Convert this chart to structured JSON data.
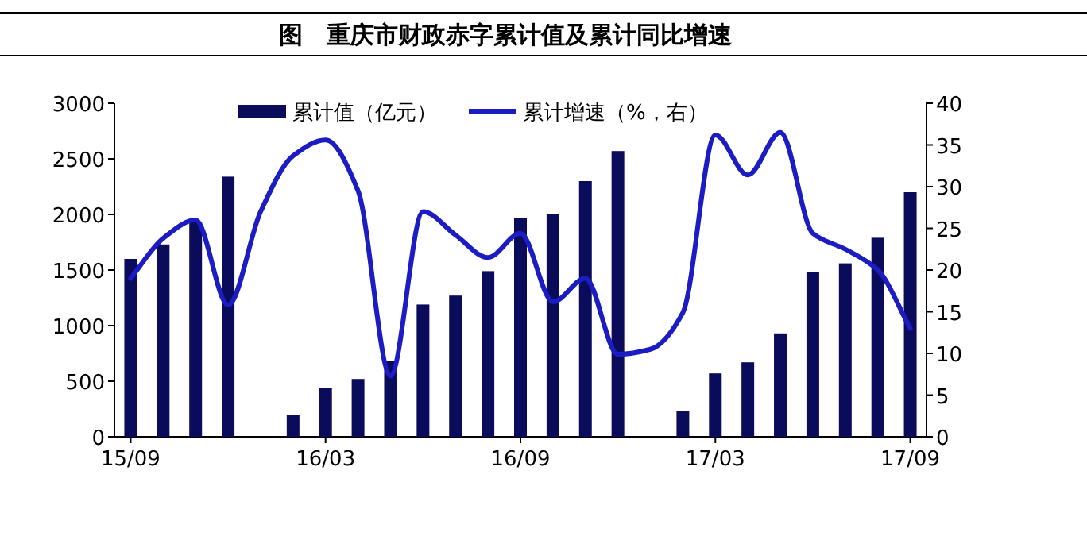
{
  "chart_data": {
    "type": "bar",
    "title": "图　重庆市财政赤字累计值及累计同比增速",
    "categories": [
      "15/09",
      null,
      null,
      null,
      null,
      null,
      "16/03",
      null,
      null,
      null,
      null,
      null,
      "16/09",
      null,
      null,
      null,
      null,
      null,
      "17/03",
      null,
      null,
      null,
      null,
      null,
      "17/09"
    ],
    "series": [
      {
        "name": "累计值（亿元）",
        "color": "#0b0b5c",
        "values": [
          1600,
          1730,
          1930,
          2340,
          null,
          200,
          440,
          520,
          680,
          1190,
          1270,
          1490,
          1970,
          2000,
          2300,
          2570,
          null,
          230,
          570,
          670,
          930,
          1480,
          1560,
          1790,
          2200
        ]
      },
      {
        "name": "累计增速（%，右）",
        "type": "line",
        "axis": "y2",
        "color": "#1c1cc4",
        "values": [
          19,
          23.8,
          26,
          15.8,
          27,
          33.7,
          35.6,
          29.5,
          7.3,
          27,
          24.2,
          21.5,
          24.4,
          16.2,
          19,
          9.9,
          10.5,
          14.9,
          36.2,
          31.4,
          36.5,
          24.4,
          22.5,
          20,
          13
        ]
      }
    ],
    "ylim": [
      0,
      3000
    ],
    "yticks": [
      0,
      500,
      1000,
      1500,
      2000,
      2500,
      3000
    ],
    "y2lim": [
      0,
      40
    ],
    "y2ticks": [
      0,
      5,
      10,
      15,
      20,
      25,
      30,
      35,
      40
    ],
    "legend": "top"
  }
}
